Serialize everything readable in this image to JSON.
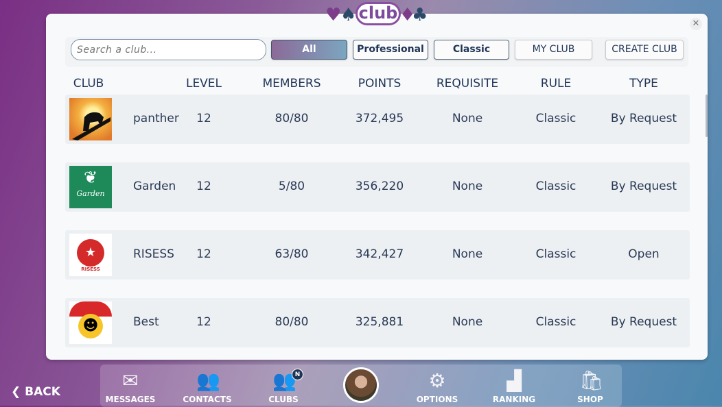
{
  "logo": {
    "text": "club"
  },
  "filters": {
    "search_placeholder": "Search a club...",
    "buttons": [
      "All",
      "Professional",
      "Classic",
      "MY CLUB",
      "CREATE CLUB"
    ],
    "selected": "All"
  },
  "columns": [
    "CLUB",
    "LEVEL",
    "MEMBERS",
    "POINTS",
    "REQUISITE",
    "RULE",
    "TYPE"
  ],
  "clubs": [
    {
      "name": "panther",
      "level": "12",
      "members": "80/80",
      "points": "372,495",
      "requisite": "None",
      "rule": "Classic",
      "type": "By Request"
    },
    {
      "name": "Garden",
      "level": "12",
      "members": "5/80",
      "points": "356,220",
      "requisite": "None",
      "rule": "Classic",
      "type": "By Request",
      "logo_text": "Garden"
    },
    {
      "name": "RISESS",
      "level": "12",
      "members": "63/80",
      "points": "342,427",
      "requisite": "None",
      "rule": "Classic",
      "type": "Open",
      "logo_text": "RISESS"
    },
    {
      "name": "Best",
      "level": "12",
      "members": "80/80",
      "points": "325,881",
      "requisite": "None",
      "rule": "Classic",
      "type": "By Request"
    }
  ],
  "nav": {
    "back": "BACK",
    "items": [
      "MESSAGES",
      "CONTACTS",
      "CLUBS",
      "OPTIONS",
      "RANKING",
      "SHOP"
    ],
    "clubs_badge": "N"
  },
  "colors": {
    "text": "#1e3456",
    "row_bg": "#edf0f3",
    "accent_from": "#8c6a98",
    "accent_to": "#7ba6c0"
  }
}
